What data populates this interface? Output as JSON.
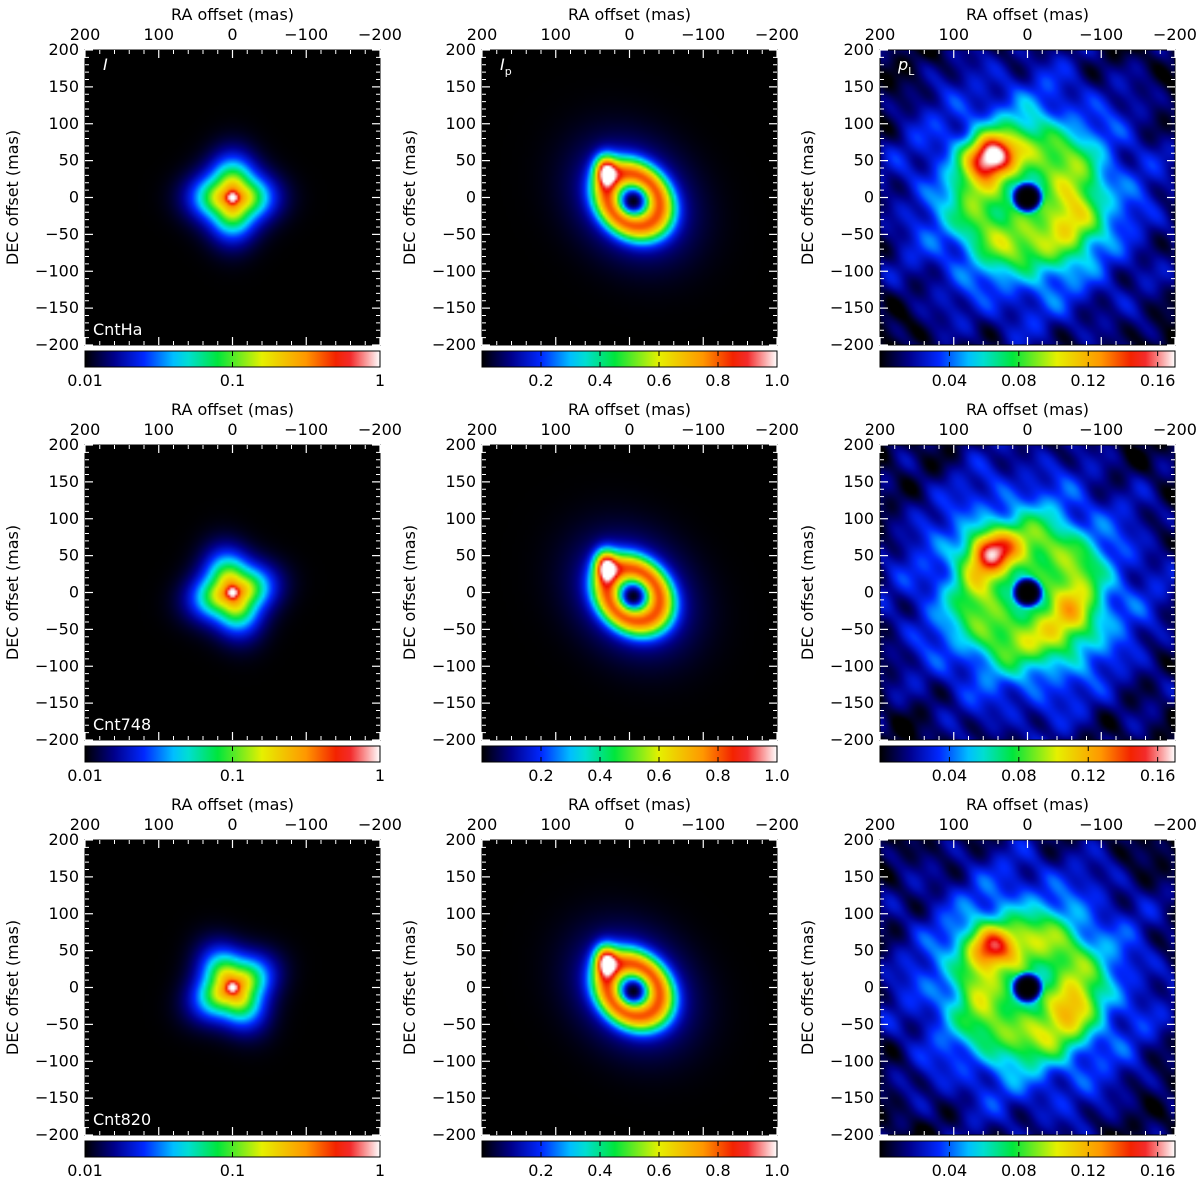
{
  "figure": {
    "filter_labels": [
      "CntHa",
      "Cnt748",
      "Cnt820"
    ],
    "quantity_labels": [
      {
        "main": "I",
        "sub": ""
      },
      {
        "main": "I",
        "sub": "p"
      },
      {
        "main": "p",
        "sub": "L"
      }
    ]
  },
  "chart_data": {
    "type": "heatmap",
    "layout": "3x3 grid",
    "xlabel": "RA offset (mas)",
    "ylabel": "DEC offset (mas)",
    "x_ticks": [
      "200",
      "100",
      "0",
      "−100",
      "−200"
    ],
    "y_ticks": [
      "200",
      "150",
      "100",
      "50",
      "0",
      "−50",
      "−100",
      "−150",
      "−200"
    ],
    "xlim": [
      200,
      -200
    ],
    "ylim": [
      -200,
      200
    ],
    "colormap": "rainbow (black-blue-cyan-green-yellow-red-white)",
    "colorbars": [
      {
        "scale": "log",
        "range": [
          0.01,
          1
        ],
        "ticks": [
          "0.01",
          "0.1",
          "1"
        ]
      },
      {
        "scale": "linear",
        "range": [
          0,
          1.0
        ],
        "ticks": [
          "0.2",
          "0.4",
          "0.6",
          "0.8",
          "1.0"
        ]
      },
      {
        "scale": "linear",
        "range": [
          0,
          0.17
        ],
        "ticks": [
          "0.04",
          "0.08",
          "0.12",
          "0.16"
        ]
      }
    ],
    "features": {
      "I": {
        "peak_xy_mas": [
          0,
          0
        ],
        "fwhm_mas": 45
      },
      "Ip": {
        "ring_radius_mas": 38,
        "inner_hole_mas": 18,
        "bright_lobe_xy_mas": [
          35,
          40
        ],
        "peak_norm": 1.0
      },
      "pL": {
        "inner_hole_radius_mas": 22,
        "bright_blob_xy_mas": [
          50,
          55
        ],
        "peak": [
          0.17,
          0.14,
          0.14
        ]
      }
    }
  }
}
